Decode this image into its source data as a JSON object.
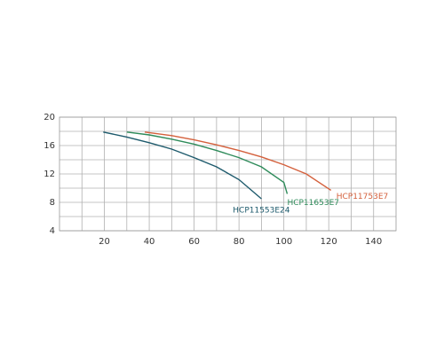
{
  "chart_data": {
    "type": "line",
    "xlim": [
      0,
      150
    ],
    "xticks": [
      20,
      40,
      60,
      80,
      100,
      120,
      140
    ],
    "ylim": [
      4,
      20
    ],
    "yticks": [
      4,
      8,
      12,
      16,
      20
    ],
    "grid": true,
    "minor_grid": true,
    "series": [
      {
        "name": "HCP11553E24",
        "color": "#1d5a6c",
        "x": [
          19.5,
          30,
          40,
          50,
          60,
          70,
          80,
          90
        ],
        "values": [
          17.9,
          17.2,
          16.4,
          15.5,
          14.3,
          13,
          11.2,
          8.5
        ]
      },
      {
        "name": "HCP11653E7",
        "color": "#2e8b5a",
        "x": [
          30,
          40,
          50,
          60,
          70,
          80,
          90,
          100,
          101.5
        ],
        "values": [
          17.9,
          17.5,
          16.9,
          16.2,
          15.3,
          14.3,
          13,
          10.8,
          9.2
        ]
      },
      {
        "name": "HCP11753E7",
        "color": "#d4603c",
        "x": [
          38,
          50,
          60,
          70,
          80,
          90,
          100,
          110,
          121
        ],
        "values": [
          17.9,
          17.4,
          16.8,
          16.1,
          15.3,
          14.4,
          13.3,
          12,
          9.7
        ]
      }
    ]
  }
}
